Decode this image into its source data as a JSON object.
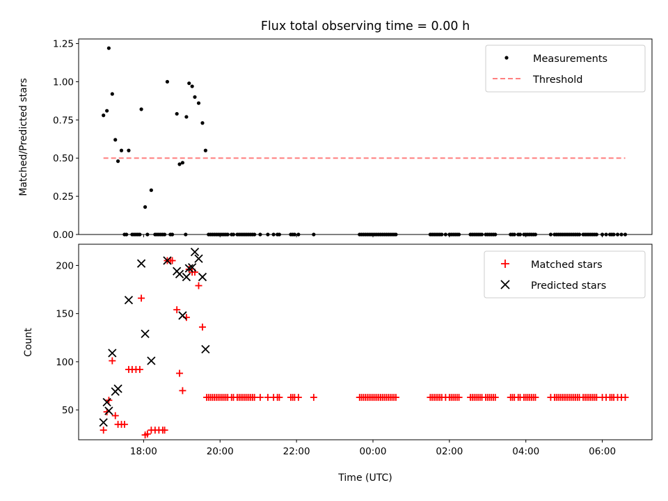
{
  "chart_data": {
    "title": "Flux total observing time = 0.00 h",
    "x_axis": {
      "label": "Time (UTC)",
      "range_hours": [
        16.3,
        31.3
      ],
      "ticks": [
        {
          "value": 18,
          "label": "18:00"
        },
        {
          "value": 20,
          "label": "20:00"
        },
        {
          "value": 22,
          "label": "22:00"
        },
        {
          "value": 24,
          "label": "00:00"
        },
        {
          "value": 26,
          "label": "02:00"
        },
        {
          "value": 28,
          "label": "04:00"
        },
        {
          "value": 30,
          "label": "06:00"
        }
      ]
    },
    "panels": [
      {
        "type": "scatter",
        "ylabel": "Matched/Predicted stars",
        "ylim": [
          0,
          1.28
        ],
        "yticks": [
          "0.00",
          "0.25",
          "0.50",
          "0.75",
          "1.00",
          "1.25"
        ],
        "legend": {
          "position": "upper right",
          "entries": [
            "Measurements",
            "Threshold"
          ]
        },
        "series": [
          {
            "name": "Measurements",
            "marker": "dot",
            "color": "#000000",
            "x": [
              16.95,
              17.04,
              17.09,
              17.18,
              17.26,
              17.33,
              17.42,
              17.61,
              17.94,
              18.04,
              18.2,
              18.62,
              18.87,
              18.94,
              19.02,
              19.12,
              19.19,
              19.27,
              19.34,
              19.44,
              19.54,
              19.62,
              17.5,
              17.55,
              17.7,
              17.75,
              17.8,
              17.85,
              17.9,
              18.1,
              18.3,
              18.35,
              18.4,
              18.45,
              18.5,
              18.55,
              18.7,
              18.75,
              19.1,
              19.7,
              19.75,
              19.8,
              19.85,
              19.9,
              19.95,
              20.0,
              20.05,
              20.1,
              20.15,
              20.2,
              20.3,
              20.35,
              20.45,
              20.5,
              20.55,
              20.6,
              20.65,
              20.7,
              20.75,
              20.8,
              20.85,
              20.9,
              21.05,
              21.25,
              21.4,
              21.5,
              21.55,
              21.85,
              21.9,
              21.95,
              22.05,
              22.45,
              23.65,
              23.7,
              23.75,
              23.8,
              23.85,
              23.9,
              23.95,
              24.0,
              24.05,
              24.1,
              24.15,
              24.2,
              24.25,
              24.3,
              24.35,
              24.4,
              24.45,
              24.5,
              24.55,
              24.6,
              25.5,
              25.55,
              25.6,
              25.65,
              25.7,
              25.75,
              25.8,
              25.9,
              26.0,
              26.05,
              26.1,
              26.15,
              26.2,
              26.25,
              26.55,
              26.6,
              26.65,
              26.7,
              26.75,
              26.8,
              26.85,
              26.95,
              27.0,
              27.05,
              27.1,
              27.15,
              27.2,
              27.6,
              27.65,
              27.7,
              27.8,
              27.85,
              27.95,
              28.0,
              28.05,
              28.1,
              28.15,
              28.2,
              28.25,
              28.65,
              28.75,
              28.8,
              28.85,
              28.9,
              28.95,
              29.0,
              29.05,
              29.1,
              29.15,
              29.2,
              29.25,
              29.3,
              29.35,
              29.4,
              29.5,
              29.55,
              29.6,
              29.65,
              29.7,
              29.75,
              29.8,
              29.85,
              30.0,
              30.1,
              30.2,
              30.25,
              30.3,
              30.4,
              30.5,
              30.6
            ],
            "y": [
              0.78,
              0.81,
              1.22,
              0.92,
              0.62,
              0.48,
              0.55,
              0.55,
              0.82,
              0.18,
              0.29,
              1.0,
              0.79,
              0.46,
              0.47,
              0.77,
              0.99,
              0.97,
              0.9,
              0.86,
              0.73,
              0.55,
              0,
              0,
              0,
              0,
              0,
              0,
              0,
              0,
              0,
              0,
              0,
              0,
              0,
              0,
              0,
              0,
              0,
              0,
              0,
              0,
              0,
              0,
              0,
              0,
              0,
              0,
              0,
              0,
              0,
              0,
              0,
              0,
              0,
              0,
              0,
              0,
              0,
              0,
              0,
              0,
              0,
              0,
              0,
              0,
              0,
              0,
              0,
              0,
              0,
              0,
              0,
              0,
              0,
              0,
              0,
              0,
              0,
              0,
              0,
              0,
              0,
              0,
              0,
              0,
              0,
              0,
              0,
              0,
              0,
              0,
              0,
              0,
              0,
              0,
              0,
              0,
              0,
              0,
              0,
              0,
              0,
              0,
              0,
              0,
              0,
              0,
              0,
              0,
              0,
              0,
              0,
              0,
              0,
              0,
              0,
              0,
              0,
              0,
              0,
              0,
              0,
              0,
              0,
              0,
              0,
              0,
              0,
              0,
              0,
              0,
              0,
              0,
              0,
              0,
              0,
              0,
              0,
              0,
              0,
              0,
              0,
              0,
              0,
              0,
              0,
              0,
              0,
              0,
              0,
              0,
              0,
              0,
              0,
              0,
              0,
              0,
              0,
              0,
              0,
              0
            ]
          },
          {
            "name": "Threshold",
            "type": "line",
            "style": "dashed",
            "color": "#ff7f7f",
            "x": [
              16.95,
              30.6
            ],
            "y": [
              0.5,
              0.5
            ]
          }
        ]
      },
      {
        "type": "scatter",
        "ylabel": "Count",
        "ylim": [
          19,
          222
        ],
        "yticks": [
          "50",
          "100",
          "150",
          "200"
        ],
        "legend": {
          "position": "upper right",
          "entries": [
            "Matched stars",
            "Predicted stars"
          ]
        },
        "series": [
          {
            "name": "Matched stars",
            "marker": "plus",
            "color": "#ff0000",
            "x": [
              16.95,
              17.04,
              17.09,
              17.18,
              17.26,
              17.33,
              17.42,
              17.5,
              17.61,
              17.7,
              17.8,
              17.9,
              17.94,
              18.04,
              18.1,
              18.2,
              18.3,
              18.4,
              18.5,
              18.55,
              18.62,
              18.7,
              18.75,
              18.87,
              18.94,
              19.02,
              19.12,
              19.19,
              19.27,
              19.34,
              19.44,
              19.54,
              19.65,
              19.7,
              19.75,
              19.8,
              19.85,
              19.9,
              19.95,
              20.0,
              20.05,
              20.1,
              20.15,
              20.2,
              20.3,
              20.35,
              20.45,
              20.5,
              20.55,
              20.6,
              20.65,
              20.7,
              20.75,
              20.8,
              20.85,
              20.9,
              21.05,
              21.25,
              21.4,
              21.5,
              21.55,
              21.85,
              21.9,
              21.95,
              22.05,
              22.45,
              23.65,
              23.7,
              23.75,
              23.8,
              23.85,
              23.9,
              23.95,
              24.0,
              24.05,
              24.1,
              24.15,
              24.2,
              24.25,
              24.3,
              24.35,
              24.4,
              24.45,
              24.5,
              24.55,
              24.6,
              25.5,
              25.55,
              25.6,
              25.65,
              25.7,
              25.75,
              25.8,
              25.9,
              26.0,
              26.05,
              26.1,
              26.15,
              26.2,
              26.25,
              26.55,
              26.6,
              26.65,
              26.7,
              26.75,
              26.8,
              26.85,
              26.95,
              27.0,
              27.05,
              27.1,
              27.15,
              27.2,
              27.6,
              27.65,
              27.7,
              27.8,
              27.85,
              27.95,
              28.0,
              28.05,
              28.1,
              28.15,
              28.2,
              28.25,
              28.65,
              28.75,
              28.8,
              28.85,
              28.9,
              28.95,
              29.0,
              29.05,
              29.1,
              29.15,
              29.2,
              29.25,
              29.3,
              29.35,
              29.4,
              29.5,
              29.55,
              29.6,
              29.65,
              29.7,
              29.75,
              29.8,
              29.85,
              30.0,
              30.1,
              30.2,
              30.25,
              30.3,
              30.4,
              30.5,
              30.6
            ],
            "y": [
              29,
              48,
              60,
              101,
              44,
              35,
              35,
              35,
              92,
              92,
              92,
              92,
              166,
              24,
              25,
              29,
              29,
              29,
              29,
              29,
              205,
              205,
              205,
              154,
              88,
              70,
              146,
              196,
              193,
              193,
              179,
              136,
              63,
              63,
              63,
              63,
              63,
              63,
              63,
              63,
              63,
              63,
              63,
              63,
              63,
              63,
              63,
              63,
              63,
              63,
              63,
              63,
              63,
              63,
              63,
              63,
              63,
              63,
              63,
              63,
              63,
              63,
              63,
              63,
              63,
              63,
              63,
              63,
              63,
              63,
              63,
              63,
              63,
              63,
              63,
              63,
              63,
              63,
              63,
              63,
              63,
              63,
              63,
              63,
              63,
              63,
              63,
              63,
              63,
              63,
              63,
              63,
              63,
              63,
              63,
              63,
              63,
              63,
              63,
              63,
              63,
              63,
              63,
              63,
              63,
              63,
              63,
              63,
              63,
              63,
              63,
              63,
              63,
              63,
              63,
              63,
              63,
              63,
              63,
              63,
              63,
              63,
              63,
              63,
              63,
              63,
              63,
              63,
              63,
              63,
              63,
              63,
              63,
              63,
              63,
              63,
              63,
              63,
              63,
              63,
              63,
              63,
              63,
              63,
              63,
              63,
              63,
              63,
              63,
              63,
              63,
              63,
              63,
              63,
              63,
              63
            ]
          },
          {
            "name": "Predicted stars",
            "marker": "x",
            "color": "#000000",
            "x": [
              16.95,
              17.04,
              17.09,
              17.18,
              17.26,
              17.33,
              17.61,
              17.94,
              18.04,
              18.2,
              18.62,
              18.87,
              18.94,
              19.02,
              19.12,
              19.19,
              19.27,
              19.34,
              19.44,
              19.54,
              19.62
            ],
            "y": [
              37,
              58,
              49,
              109,
              69,
              72,
              164,
              202,
              129,
              101,
              205,
              194,
              191,
              148,
              188,
              197,
              198,
              214,
              207,
              188,
              113
            ]
          }
        ]
      }
    ]
  }
}
